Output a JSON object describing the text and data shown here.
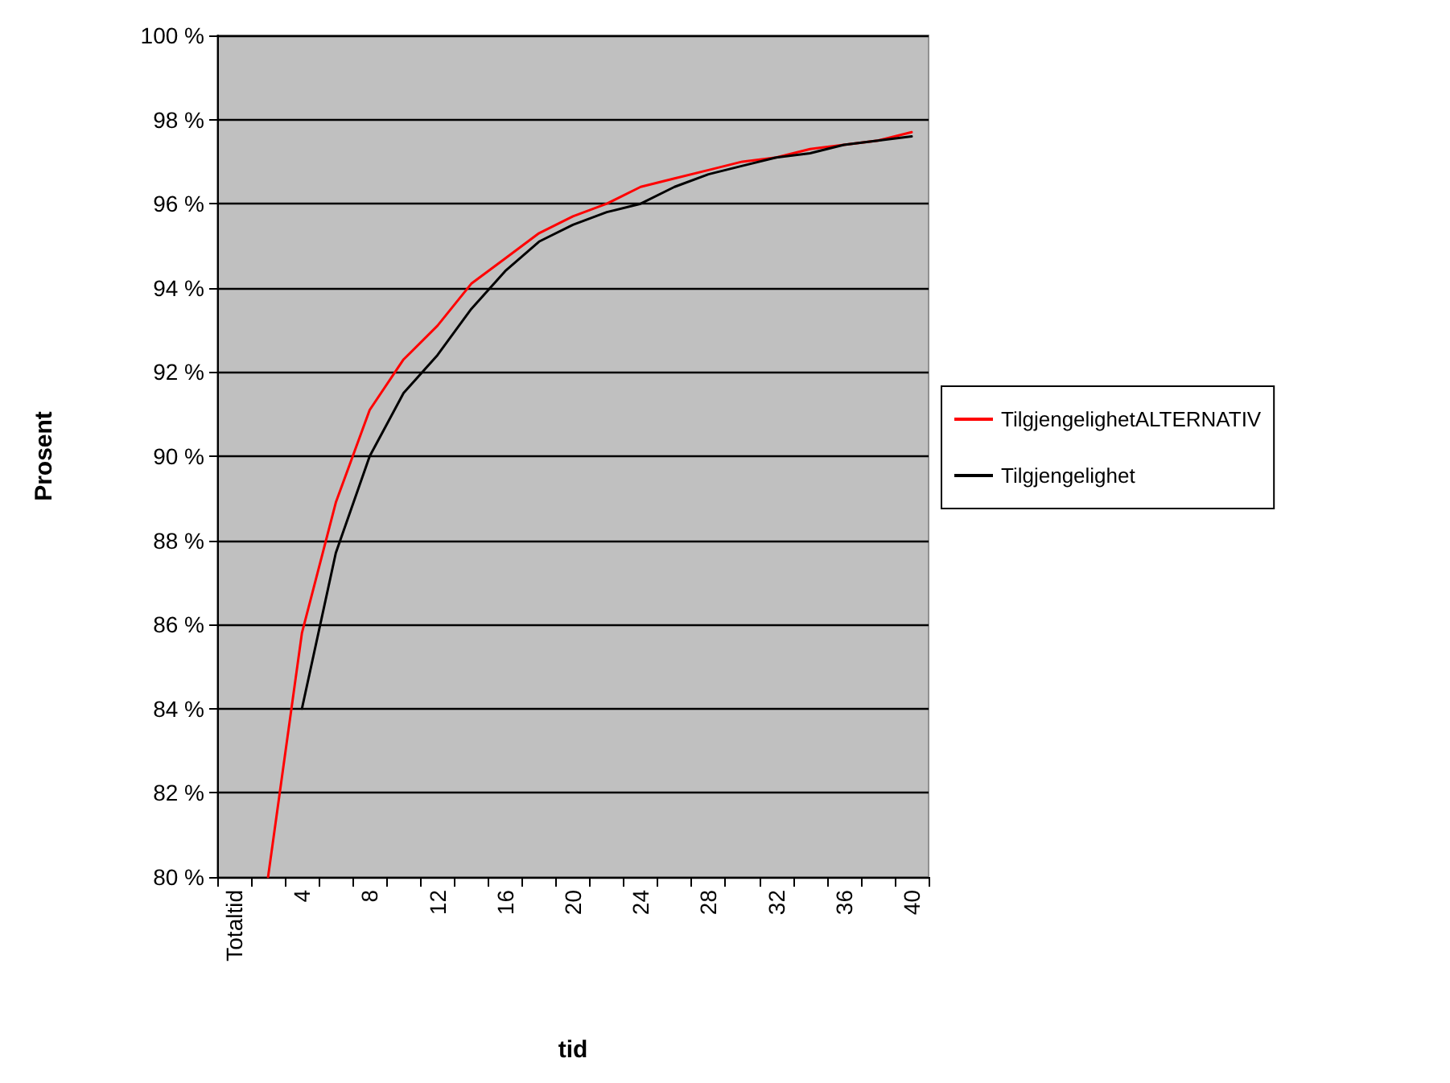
{
  "chart_data": {
    "type": "line",
    "xlabel": "tid",
    "ylabel": "Prosent",
    "categories": [
      "Totaltid",
      null,
      "4",
      null,
      "8",
      null,
      "12",
      null,
      "16",
      null,
      "20",
      null,
      "24",
      null,
      "28",
      null,
      "32",
      null,
      "36",
      null,
      "40"
    ],
    "series": [
      {
        "name": "TilgjengelighetALTERNATIV",
        "color": "#ff0000",
        "values": [
          null,
          80.0,
          85.8,
          88.9,
          91.1,
          92.3,
          93.1,
          94.1,
          94.7,
          95.3,
          95.7,
          96.0,
          96.4,
          96.6,
          96.8,
          97.0,
          97.1,
          97.3,
          97.4,
          97.5,
          97.7
        ]
      },
      {
        "name": "Tilgjengelighet",
        "color": "#000000",
        "values": [
          null,
          null,
          84.0,
          87.7,
          90.0,
          91.5,
          92.4,
          93.5,
          94.4,
          95.1,
          95.5,
          95.8,
          96.0,
          96.4,
          96.7,
          96.9,
          97.1,
          97.2,
          97.4,
          97.5,
          97.6
        ]
      }
    ],
    "ylim": [
      80,
      100
    ],
    "yticks": [
      {
        "value": 80,
        "label": "80 %"
      },
      {
        "value": 82,
        "label": "82 %"
      },
      {
        "value": 84,
        "label": "84 %"
      },
      {
        "value": 86,
        "label": "86 %"
      },
      {
        "value": 88,
        "label": "88 %"
      },
      {
        "value": 90,
        "label": "90 %"
      },
      {
        "value": 92,
        "label": "92 %"
      },
      {
        "value": 94,
        "label": "94 %"
      },
      {
        "value": 96,
        "label": "96 %"
      },
      {
        "value": 98,
        "label": "98 %"
      },
      {
        "value": 100,
        "label": "100 %"
      }
    ],
    "grid": "y",
    "legend": "right",
    "marker": "none",
    "line_style": "solid"
  }
}
